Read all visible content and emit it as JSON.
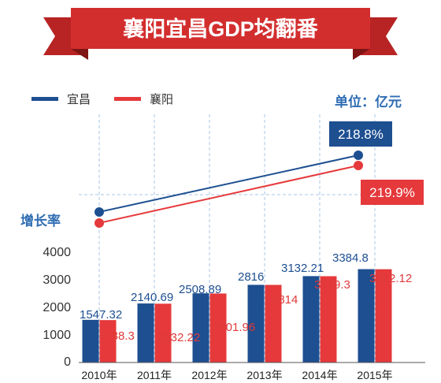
{
  "colors": {
    "series_a": "#1d4f91",
    "series_b": "#e5393b",
    "banner": "#d32e2e",
    "grid": "#a9c7e6"
  },
  "chart_data": {
    "type": "bar",
    "title": "襄阳宜昌GDP均翻番",
    "unit_label": "单位：亿元",
    "categories": [
      "2010年",
      "2011年",
      "2012年",
      "2013年",
      "2014年",
      "2015年"
    ],
    "ylim": [
      0,
      4000
    ],
    "yticks": [
      0,
      1000,
      2000,
      3000,
      4000
    ],
    "legend_position": "top-left",
    "grid": "vertical-dashed",
    "series": [
      {
        "name": "宜昌",
        "values": [
          1547.32,
          2140.69,
          2508.89,
          2816,
          3132.21,
          3384.8
        ],
        "value_labels": [
          "1547.32",
          "2140.69",
          "2508.89",
          "2816",
          "3132.21",
          "3384.8"
        ]
      },
      {
        "name": "襄阳",
        "values": [
          1538.3,
          2132.22,
          2501.96,
          2814,
          3129.3,
          3382.12
        ],
        "value_labels": [
          "1538.3",
          "2132.22",
          "2501.96",
          "2814",
          "3129.3",
          "3382.12"
        ]
      }
    ],
    "growth_rate": {
      "label": "增长率",
      "series": [
        {
          "name": "宜昌",
          "start_year": "2010年",
          "end_year": "2015年",
          "end_value": "218.8%"
        },
        {
          "name": "襄阳",
          "start_year": "2010年",
          "end_year": "2015年",
          "end_value": "219.9%"
        }
      ]
    }
  }
}
